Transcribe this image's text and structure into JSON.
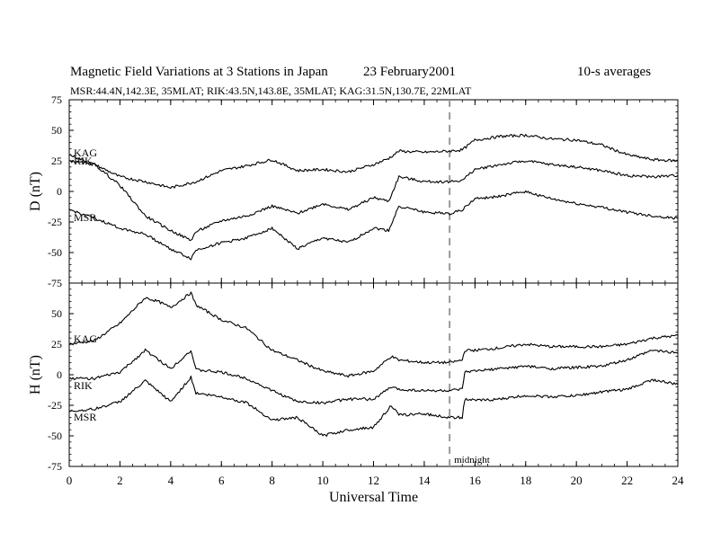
{
  "header": {
    "title": "Magnetic Field Variations at 3 Stations in Japan",
    "date": "23 February2001",
    "averaging": "10-s averages",
    "stations_line": "MSR:44.4N,142.3E, 35MLAT;  RIK:43.5N,143.8E, 35MLAT;  KAG:31.5N,130.7E, 22MLAT"
  },
  "colors": {
    "trace": "#000000",
    "axis": "#000000",
    "midnight_line": "#999999"
  },
  "chart_data": [
    {
      "type": "line",
      "panel": "D",
      "ylabel": "D (nT)",
      "ylim": [
        -75,
        75
      ],
      "yticks": [
        -75,
        -50,
        -25,
        0,
        25,
        50,
        75
      ],
      "xlim": [
        0,
        24
      ],
      "xticks": [
        0,
        2,
        4,
        6,
        8,
        10,
        12,
        14,
        16,
        18,
        20,
        22,
        24
      ],
      "grid": false,
      "series": [
        {
          "name": "KAG",
          "x": [
            0,
            1,
            2,
            3,
            4,
            5,
            6,
            7,
            8,
            9,
            10,
            11,
            12,
            12.6,
            13,
            14,
            15,
            15.5,
            16,
            17,
            18,
            19,
            20,
            21,
            22,
            23,
            24
          ],
          "values": [
            30,
            22,
            12,
            8,
            3,
            8,
            17,
            21,
            26,
            17,
            18,
            16,
            22,
            27,
            33,
            32,
            33,
            34,
            42,
            45,
            46,
            43,
            42,
            38,
            30,
            26,
            25
          ]
        },
        {
          "name": "RIK",
          "x": [
            0,
            1,
            2,
            3,
            4,
            4.8,
            5,
            6,
            7,
            8,
            9,
            10,
            11,
            12,
            12.6,
            13,
            14,
            15,
            15.5,
            16,
            17,
            18,
            19,
            20,
            21,
            22,
            23,
            24
          ],
          "values": [
            25,
            22,
            5,
            -20,
            -32,
            -40,
            -33,
            -24,
            -20,
            -12,
            -18,
            -10,
            -15,
            -5,
            -8,
            12,
            8,
            8,
            9,
            18,
            22,
            25,
            22,
            20,
            17,
            13,
            12,
            13
          ]
        },
        {
          "name": "MSR",
          "x": [
            0,
            1,
            2,
            3,
            4,
            4.8,
            5,
            6,
            7,
            8,
            9,
            10,
            11,
            12,
            12.6,
            13,
            14,
            15,
            15.5,
            16,
            17,
            18,
            19,
            20,
            21,
            22,
            23,
            24
          ],
          "values": [
            -15,
            -22,
            -30,
            -35,
            -47,
            -55,
            -48,
            -42,
            -38,
            -30,
            -47,
            -38,
            -42,
            -30,
            -32,
            -12,
            -17,
            -18,
            -15,
            -6,
            -4,
            0,
            -6,
            -10,
            -13,
            -17,
            -20,
            -22
          ]
        }
      ],
      "annotations": [
        {
          "text": "",
          "x": 15,
          "style": "dashed-vertical"
        }
      ]
    },
    {
      "type": "line",
      "panel": "H",
      "ylabel": "H (nT)",
      "xlabel": "Universal Time",
      "ylim": [
        -75,
        75
      ],
      "yticks": [
        -75,
        -50,
        -25,
        0,
        25,
        50,
        75
      ],
      "xlim": [
        0,
        24
      ],
      "xticks": [
        0,
        2,
        4,
        6,
        8,
        10,
        12,
        14,
        16,
        18,
        20,
        22,
        24
      ],
      "grid": false,
      "series": [
        {
          "name": "KAG",
          "x": [
            0,
            1,
            2,
            3,
            3.5,
            4,
            4.8,
            5,
            6,
            7,
            8,
            9,
            10,
            11,
            12,
            12.7,
            13,
            14,
            15,
            15.5,
            15.6,
            16,
            17,
            18,
            19,
            20,
            21,
            22,
            23,
            24
          ],
          "values": [
            25,
            28,
            42,
            63,
            60,
            55,
            67,
            57,
            45,
            38,
            20,
            12,
            3,
            -1,
            3,
            15,
            12,
            10,
            10,
            12,
            20,
            20,
            22,
            25,
            23,
            23,
            23,
            25,
            30,
            32
          ]
        },
        {
          "name": "RIK",
          "x": [
            0,
            1,
            2,
            3,
            4,
            4.8,
            5,
            6,
            7,
            8,
            9,
            10,
            11,
            12,
            12.7,
            13,
            14,
            15,
            15.5,
            15.6,
            16,
            17,
            18,
            19,
            20,
            21,
            22,
            23,
            24
          ],
          "values": [
            -3,
            -3,
            2,
            20,
            5,
            20,
            4,
            2,
            -3,
            -13,
            -22,
            -23,
            -20,
            -20,
            -10,
            -12,
            -13,
            -13,
            -12,
            2,
            3,
            5,
            7,
            5,
            6,
            7,
            12,
            20,
            18
          ]
        },
        {
          "name": "MSR",
          "x": [
            0,
            1,
            2,
            3,
            4,
            4.8,
            5,
            6,
            7,
            8,
            9,
            10,
            11,
            12,
            12.7,
            13,
            14,
            15,
            15.5,
            15.6,
            16,
            17,
            18,
            19,
            20,
            21,
            22,
            23,
            24
          ],
          "values": [
            -30,
            -28,
            -22,
            -5,
            -22,
            -2,
            -15,
            -18,
            -23,
            -37,
            -35,
            -50,
            -45,
            -43,
            -25,
            -33,
            -32,
            -35,
            -35,
            -20,
            -21,
            -20,
            -17,
            -18,
            -17,
            -14,
            -12,
            -4,
            -8
          ]
        }
      ],
      "annotations": [
        {
          "text": "midnight",
          "x": 15,
          "style": "dashed-vertical"
        }
      ]
    }
  ],
  "panel_labels": {
    "D": {
      "kag": "KAG",
      "rik": "RIK",
      "msr": "MSR"
    },
    "H": {
      "kag": "KAG",
      "rik": "RIK",
      "msr": "MSR"
    }
  }
}
